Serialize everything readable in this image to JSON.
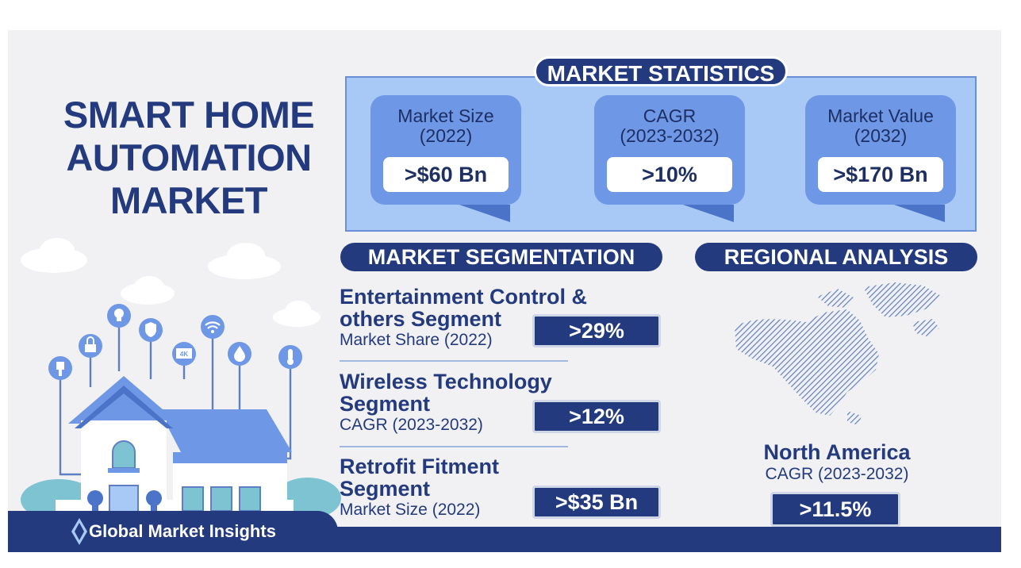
{
  "title": [
    "SMART HOME",
    "AUTOMATION",
    "MARKET"
  ],
  "market_statistics": {
    "heading": "MARKET STATISTICS",
    "cards": [
      {
        "label_line1": "Market Size",
        "label_line2": "(2022)",
        "value": ">$60 Bn"
      },
      {
        "label_line1": "CAGR",
        "label_line2": "(2023-2032)",
        "value": ">10%"
      },
      {
        "label_line1": "Market Value",
        "label_line2": "(2032)",
        "value": ">$170 Bn"
      }
    ]
  },
  "market_segmentation": {
    "heading": "MARKET SEGMENTATION",
    "segments": [
      {
        "title_line1": "Entertainment Control &",
        "title_line2": "others Segment",
        "metric": "Market Share (2022)",
        "value": ">29%"
      },
      {
        "title_line1": "Wireless Technology",
        "title_line2": "Segment",
        "metric": "CAGR (2023-2032)",
        "value": ">12%"
      },
      {
        "title_line1": "Retrofit Fitment",
        "title_line2": "Segment",
        "metric": "Market Size (2022)",
        "value": ">$35 Bn"
      }
    ]
  },
  "regional_analysis": {
    "heading": "REGIONAL ANALYSIS",
    "region": "North America",
    "metric": "CAGR (2023-2032)",
    "value": ">11.5%"
  },
  "footer": {
    "logo_text": "Global Market Insights"
  },
  "house_icons": [
    "plug-icon",
    "lock-icon",
    "bulb-icon",
    "shield-icon",
    "4k-tv-icon",
    "wifi-icon",
    "water-drop-icon",
    "thermometer-icon"
  ],
  "colors": {
    "navy": "#233a7e",
    "light_blue": "#a8c8f6",
    "card_blue": "#6e97e6",
    "background": "#f1f1f3"
  },
  "icon_text": {
    "tv": "4K"
  }
}
